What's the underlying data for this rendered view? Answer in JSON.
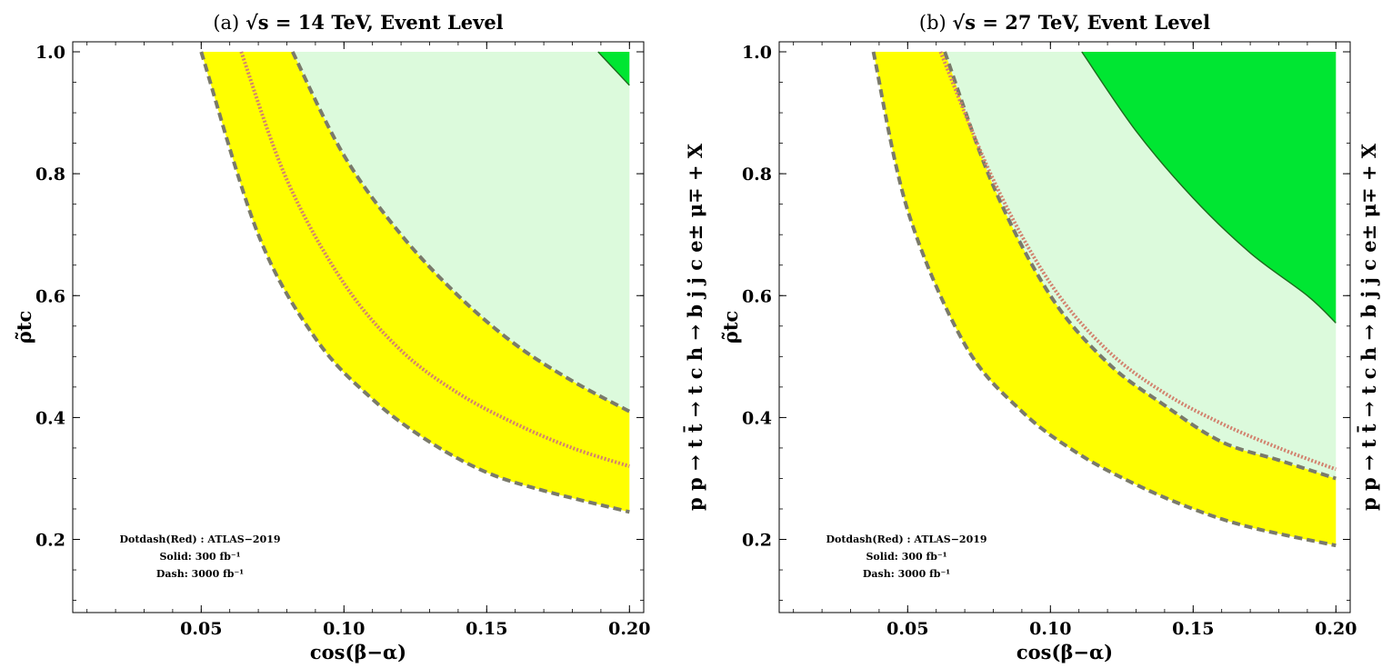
{
  "chart_data": [
    {
      "type": "area",
      "panel": "(a)",
      "title_prefix": "(a)",
      "title_energy": "= 14 TeV, Event Level",
      "title_sqrt": "√s",
      "xlabel": "cos(β−α)",
      "ylabel": "ρ̃tc",
      "xlim": [
        0.005,
        0.205
      ],
      "ylim": [
        0.08,
        1.0
      ],
      "xticks": [
        "0.05",
        "0.10",
        "0.15",
        "0.20"
      ],
      "xtick_values": [
        0.05,
        0.1,
        0.15,
        0.2
      ],
      "yticks": [
        "0.2",
        "0.4",
        "0.6",
        "0.8",
        "1.0"
      ],
      "ytick_values": [
        0.2,
        0.4,
        0.6,
        0.8,
        1.0
      ],
      "annotation": [
        "Dotdash(Red) : ATLAS−2019",
        "Solid: 300 fb⁻¹",
        "Dash: 3000 fb⁻¹"
      ],
      "colors": {
        "excluded_3000": "#dcfadc",
        "excluded_300": "#00e632",
        "band": "#ffff00",
        "dash": "#7a7a6a",
        "dotdash": "#d2826e"
      },
      "series": [
        {
          "name": "Dash: 3000 fb⁻¹ (upper)",
          "x": [
            0.082,
            0.1,
            0.12,
            0.14,
            0.16,
            0.18,
            0.2
          ],
          "y": [
            1.0,
            0.83,
            0.7,
            0.6,
            0.52,
            0.46,
            0.41
          ]
        },
        {
          "name": "Dash: 3000 fb⁻¹ (lower)",
          "x": [
            0.05,
            0.07,
            0.09,
            0.11,
            0.13,
            0.15,
            0.17,
            0.2
          ],
          "y": [
            1.0,
            0.7,
            0.53,
            0.43,
            0.36,
            0.31,
            0.28,
            0.245
          ]
        },
        {
          "name": "Dotdash(Red) : ATLAS−2019",
          "x": [
            0.064,
            0.08,
            0.1,
            0.12,
            0.14,
            0.16,
            0.18,
            0.2
          ],
          "y": [
            1.0,
            0.79,
            0.62,
            0.51,
            0.44,
            0.39,
            0.35,
            0.32
          ]
        },
        {
          "name": "Solid: 300 fb⁻¹",
          "x": [
            0.189,
            0.195,
            0.2
          ],
          "y": [
            1.0,
            0.97,
            0.945
          ]
        }
      ]
    },
    {
      "type": "area",
      "panel": "(b)",
      "title_prefix": "(b)",
      "title_energy": "= 27 TeV, Event Level",
      "title_sqrt": "√s",
      "xlabel": "cos(β−α)",
      "ylabel": "ρ̃tc",
      "side_label": "p p → t t̄ → t c h → b j j c e± μ∓ + X",
      "xlim": [
        0.005,
        0.205
      ],
      "ylim": [
        0.08,
        1.0
      ],
      "xticks": [
        "0.05",
        "0.10",
        "0.15",
        "0.20"
      ],
      "xtick_values": [
        0.05,
        0.1,
        0.15,
        0.2
      ],
      "yticks": [
        "0.2",
        "0.4",
        "0.6",
        "0.8",
        "1.0"
      ],
      "ytick_values": [
        0.2,
        0.4,
        0.6,
        0.8,
        1.0
      ],
      "annotation": [
        "Dotdash(Red) : ATLAS−2019",
        "Solid: 300 fb⁻¹",
        "Dash: 3000 fb⁻¹"
      ],
      "colors": {
        "excluded_3000": "#dcfadc",
        "excluded_300": "#00e632",
        "band": "#ffff00",
        "dash": "#7a7a6a",
        "dotdash": "#d2826e"
      },
      "series": [
        {
          "name": "Dash: 3000 fb⁻¹ (upper)",
          "x": [
            0.063,
            0.08,
            0.1,
            0.12,
            0.14,
            0.16,
            0.18,
            0.2
          ],
          "y": [
            1.0,
            0.78,
            0.6,
            0.49,
            0.42,
            0.36,
            0.33,
            0.3
          ]
        },
        {
          "name": "Dash: 3000 fb⁻¹ (lower)",
          "x": [
            0.038,
            0.05,
            0.07,
            0.09,
            0.11,
            0.13,
            0.15,
            0.17,
            0.2
          ],
          "y": [
            1.0,
            0.74,
            0.52,
            0.41,
            0.34,
            0.29,
            0.25,
            0.22,
            0.19
          ]
        },
        {
          "name": "Dotdash(Red) : ATLAS−2019",
          "x": [
            0.0615,
            0.08,
            0.1,
            0.12,
            0.14,
            0.16,
            0.18,
            0.2
          ],
          "y": [
            1.0,
            0.79,
            0.62,
            0.51,
            0.44,
            0.39,
            0.35,
            0.315
          ]
        },
        {
          "name": "Solid: 300 fb⁻¹",
          "x": [
            0.111,
            0.13,
            0.15,
            0.17,
            0.19,
            0.2
          ],
          "y": [
            1.0,
            0.87,
            0.76,
            0.67,
            0.6,
            0.555
          ]
        }
      ]
    }
  ],
  "side_label_a": "p p → t t̄ → t c h → b j j c e± μ∓ + X",
  "side_label_b": "p p → t t̄ → t c h → b j j c e± μ∓ + X"
}
